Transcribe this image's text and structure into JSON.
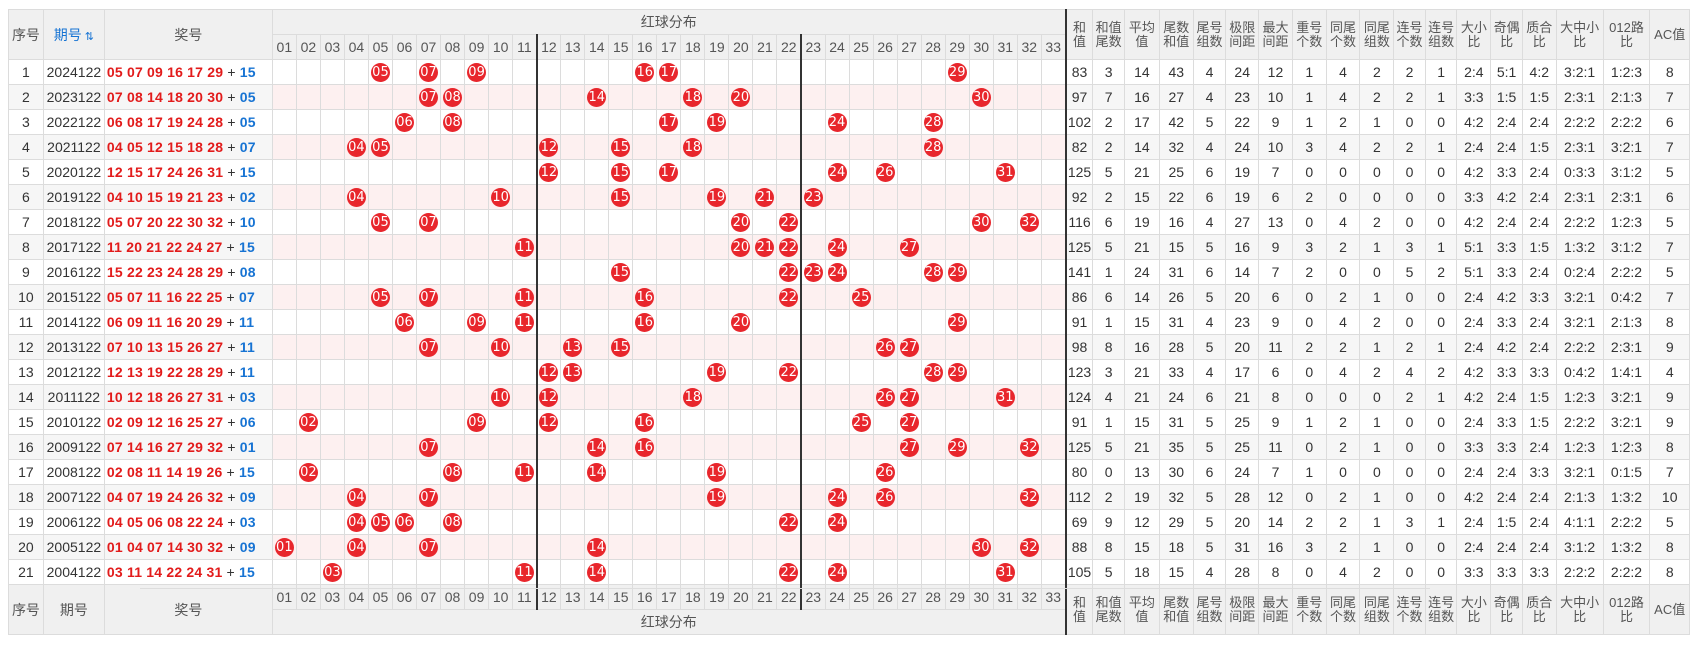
{
  "header": {
    "seq": "序号",
    "issue": "期号",
    "sort_icon": "sort-arrow-icon",
    "draw": "奖号",
    "red_dist": "红球分布",
    "balls": [
      "01",
      "02",
      "03",
      "04",
      "05",
      "06",
      "07",
      "08",
      "09",
      "10",
      "11",
      "12",
      "13",
      "14",
      "15",
      "16",
      "17",
      "18",
      "19",
      "20",
      "21",
      "22",
      "23",
      "24",
      "25",
      "26",
      "27",
      "28",
      "29",
      "30",
      "31",
      "32",
      "33"
    ],
    "stats": [
      "和值",
      "和值尾数",
      "平均值",
      "尾数和值",
      "尾号组数",
      "极限间距",
      "最大间距",
      "重号个数",
      "同尾个数",
      "同尾组数",
      "连号个数",
      "连号组数",
      "大小比",
      "奇偶比",
      "质合比",
      "大中小比",
      "012路比",
      "AC值"
    ]
  },
  "rows": [
    {
      "seq": "1",
      "issue": "2024122",
      "reds": "05 07 09 16 17 29",
      "plus": "+",
      "blue": "15",
      "balls": [
        5,
        7,
        9,
        16,
        17,
        29
      ],
      "stats": [
        "83",
        "3",
        "14",
        "43",
        "4",
        "24",
        "12",
        "1",
        "4",
        "2",
        "2",
        "1",
        "2:4",
        "5:1",
        "4:2",
        "3:2:1",
        "1:2:3",
        "8"
      ]
    },
    {
      "seq": "2",
      "issue": "2023122",
      "reds": "07 08 14 18 20 30",
      "plus": "+",
      "blue": "05",
      "balls": [
        7,
        8,
        14,
        18,
        20,
        30
      ],
      "stats": [
        "97",
        "7",
        "16",
        "27",
        "4",
        "23",
        "10",
        "1",
        "4",
        "2",
        "2",
        "1",
        "3:3",
        "1:5",
        "1:5",
        "2:3:1",
        "2:1:3",
        "7"
      ]
    },
    {
      "seq": "3",
      "issue": "2022122",
      "reds": "06 08 17 19 24 28",
      "plus": "+",
      "blue": "05",
      "balls": [
        6,
        8,
        17,
        19,
        24,
        28
      ],
      "stats": [
        "102",
        "2",
        "17",
        "42",
        "5",
        "22",
        "9",
        "1",
        "2",
        "1",
        "0",
        "0",
        "4:2",
        "2:4",
        "2:4",
        "2:2:2",
        "2:2:2",
        "6"
      ]
    },
    {
      "seq": "4",
      "issue": "2021122",
      "reds": "04 05 12 15 18 28",
      "plus": "+",
      "blue": "07",
      "balls": [
        4,
        5,
        12,
        15,
        18,
        28
      ],
      "stats": [
        "82",
        "2",
        "14",
        "32",
        "4",
        "24",
        "10",
        "3",
        "4",
        "2",
        "2",
        "1",
        "2:4",
        "2:4",
        "1:5",
        "2:3:1",
        "3:2:1",
        "7"
      ]
    },
    {
      "seq": "5",
      "issue": "2020122",
      "reds": "12 15 17 24 26 31",
      "plus": "+",
      "blue": "15",
      "balls": [
        12,
        15,
        17,
        24,
        26,
        31
      ],
      "stats": [
        "125",
        "5",
        "21",
        "25",
        "6",
        "19",
        "7",
        "0",
        "0",
        "0",
        "0",
        "0",
        "4:2",
        "3:3",
        "2:4",
        "0:3:3",
        "3:1:2",
        "5"
      ]
    },
    {
      "seq": "6",
      "issue": "2019122",
      "reds": "04 10 15 19 21 23",
      "plus": "+",
      "blue": "02",
      "balls": [
        4,
        10,
        15,
        19,
        21,
        23
      ],
      "stats": [
        "92",
        "2",
        "15",
        "22",
        "6",
        "19",
        "6",
        "2",
        "0",
        "0",
        "0",
        "0",
        "3:3",
        "4:2",
        "2:4",
        "2:3:1",
        "2:3:1",
        "6"
      ]
    },
    {
      "seq": "7",
      "issue": "2018122",
      "reds": "05 07 20 22 30 32",
      "plus": "+",
      "blue": "10",
      "balls": [
        5,
        7,
        20,
        22,
        30,
        32
      ],
      "stats": [
        "116",
        "6",
        "19",
        "16",
        "4",
        "27",
        "13",
        "0",
        "4",
        "2",
        "0",
        "0",
        "4:2",
        "2:4",
        "2:4",
        "2:2:2",
        "1:2:3",
        "5"
      ]
    },
    {
      "seq": "8",
      "issue": "2017122",
      "reds": "11 20 21 22 24 27",
      "plus": "+",
      "blue": "15",
      "balls": [
        11,
        20,
        21,
        22,
        24,
        27
      ],
      "stats": [
        "125",
        "5",
        "21",
        "15",
        "5",
        "16",
        "9",
        "3",
        "2",
        "1",
        "3",
        "1",
        "5:1",
        "3:3",
        "1:5",
        "1:3:2",
        "3:1:2",
        "7"
      ]
    },
    {
      "seq": "9",
      "issue": "2016122",
      "reds": "15 22 23 24 28 29",
      "plus": "+",
      "blue": "08",
      "balls": [
        15,
        22,
        23,
        24,
        28,
        29
      ],
      "stats": [
        "141",
        "1",
        "24",
        "31",
        "6",
        "14",
        "7",
        "2",
        "0",
        "0",
        "5",
        "2",
        "5:1",
        "3:3",
        "2:4",
        "0:2:4",
        "2:2:2",
        "5"
      ]
    },
    {
      "seq": "10",
      "issue": "2015122",
      "reds": "05 07 11 16 22 25",
      "plus": "+",
      "blue": "07",
      "balls": [
        5,
        7,
        11,
        16,
        22,
        25
      ],
      "stats": [
        "86",
        "6",
        "14",
        "26",
        "5",
        "20",
        "6",
        "0",
        "2",
        "1",
        "0",
        "0",
        "2:4",
        "4:2",
        "3:3",
        "3:2:1",
        "0:4:2",
        "7"
      ]
    },
    {
      "seq": "11",
      "issue": "2014122",
      "reds": "06 09 11 16 20 29",
      "plus": "+",
      "blue": "11",
      "balls": [
        6,
        9,
        11,
        16,
        20,
        29
      ],
      "stats": [
        "91",
        "1",
        "15",
        "31",
        "4",
        "23",
        "9",
        "0",
        "4",
        "2",
        "0",
        "0",
        "2:4",
        "3:3",
        "2:4",
        "3:2:1",
        "2:1:3",
        "8"
      ]
    },
    {
      "seq": "12",
      "issue": "2013122",
      "reds": "07 10 13 15 26 27",
      "plus": "+",
      "blue": "11",
      "balls": [
        7,
        10,
        13,
        15,
        26,
        27
      ],
      "stats": [
        "98",
        "8",
        "16",
        "28",
        "5",
        "20",
        "11",
        "2",
        "2",
        "1",
        "2",
        "1",
        "2:4",
        "4:2",
        "2:4",
        "2:2:2",
        "2:3:1",
        "9"
      ]
    },
    {
      "seq": "13",
      "issue": "2012122",
      "reds": "12 13 19 22 28 29",
      "plus": "+",
      "blue": "11",
      "balls": [
        12,
        13,
        19,
        22,
        28,
        29
      ],
      "stats": [
        "123",
        "3",
        "21",
        "33",
        "4",
        "17",
        "6",
        "0",
        "4",
        "2",
        "4",
        "2",
        "4:2",
        "3:3",
        "3:3",
        "0:4:2",
        "1:4:1",
        "4"
      ]
    },
    {
      "seq": "14",
      "issue": "2011122",
      "reds": "10 12 18 26 27 31",
      "plus": "+",
      "blue": "03",
      "balls": [
        10,
        12,
        18,
        26,
        27,
        31
      ],
      "stats": [
        "124",
        "4",
        "21",
        "24",
        "6",
        "21",
        "8",
        "0",
        "0",
        "0",
        "2",
        "1",
        "4:2",
        "2:4",
        "1:5",
        "1:2:3",
        "3:2:1",
        "9"
      ]
    },
    {
      "seq": "15",
      "issue": "2010122",
      "reds": "02 09 12 16 25 27",
      "plus": "+",
      "blue": "06",
      "balls": [
        2,
        9,
        12,
        16,
        25,
        27
      ],
      "stats": [
        "91",
        "1",
        "15",
        "31",
        "5",
        "25",
        "9",
        "1",
        "2",
        "1",
        "0",
        "0",
        "2:4",
        "3:3",
        "1:5",
        "2:2:2",
        "3:2:1",
        "9"
      ]
    },
    {
      "seq": "16",
      "issue": "2009122",
      "reds": "07 14 16 27 29 32",
      "plus": "+",
      "blue": "01",
      "balls": [
        7,
        14,
        16,
        27,
        29,
        32
      ],
      "stats": [
        "125",
        "5",
        "21",
        "35",
        "5",
        "25",
        "11",
        "0",
        "2",
        "1",
        "0",
        "0",
        "3:3",
        "3:3",
        "2:4",
        "1:2:3",
        "1:2:3",
        "8"
      ]
    },
    {
      "seq": "17",
      "issue": "2008122",
      "reds": "02 08 11 14 19 26",
      "plus": "+",
      "blue": "15",
      "balls": [
        2,
        8,
        11,
        14,
        19,
        26
      ],
      "stats": [
        "80",
        "0",
        "13",
        "30",
        "6",
        "24",
        "7",
        "1",
        "0",
        "0",
        "0",
        "0",
        "2:4",
        "2:4",
        "3:3",
        "3:2:1",
        "0:1:5",
        "7"
      ]
    },
    {
      "seq": "18",
      "issue": "2007122",
      "reds": "04 07 19 24 26 32",
      "plus": "+",
      "blue": "09",
      "balls": [
        4,
        7,
        19,
        24,
        26,
        32
      ],
      "stats": [
        "112",
        "2",
        "19",
        "32",
        "5",
        "28",
        "12",
        "0",
        "2",
        "1",
        "0",
        "0",
        "4:2",
        "2:4",
        "2:4",
        "2:1:3",
        "1:3:2",
        "10"
      ]
    },
    {
      "seq": "19",
      "issue": "2006122",
      "reds": "04 05 06 08 22 24",
      "plus": "+",
      "blue": "03",
      "balls": [
        4,
        5,
        6,
        8,
        22,
        24
      ],
      "stats": [
        "69",
        "9",
        "12",
        "29",
        "5",
        "20",
        "14",
        "2",
        "2",
        "1",
        "3",
        "1",
        "2:4",
        "1:5",
        "2:4",
        "4:1:1",
        "2:2:2",
        "5"
      ]
    },
    {
      "seq": "20",
      "issue": "2005122",
      "reds": "01 04 07 14 30 32",
      "plus": "+",
      "blue": "09",
      "balls": [
        1,
        4,
        7,
        14,
        30,
        32
      ],
      "stats": [
        "88",
        "8",
        "15",
        "18",
        "5",
        "31",
        "16",
        "3",
        "2",
        "1",
        "0",
        "0",
        "2:4",
        "2:4",
        "2:4",
        "3:1:2",
        "1:3:2",
        "8"
      ]
    },
    {
      "seq": "21",
      "issue": "2004122",
      "reds": "03 11 14 22 24 31",
      "plus": "+",
      "blue": "15",
      "balls": [
        3,
        11,
        14,
        22,
        24,
        31
      ],
      "stats": [
        "105",
        "5",
        "18",
        "15",
        "4",
        "28",
        "8",
        "0",
        "4",
        "2",
        "0",
        "0",
        "3:3",
        "3:3",
        "3:3",
        "2:2:2",
        "2:2:2",
        "8"
      ]
    }
  ]
}
